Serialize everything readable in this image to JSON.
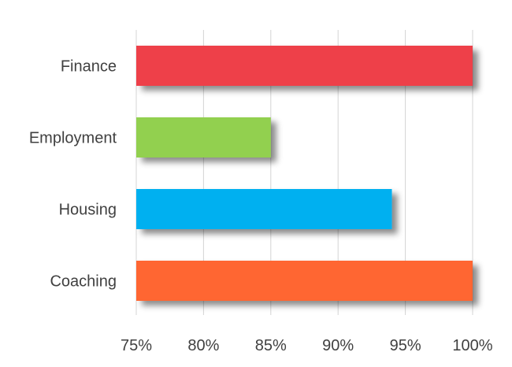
{
  "chart_data": {
    "type": "bar",
    "orientation": "horizontal",
    "categories": [
      "Finance",
      "Employment",
      "Housing",
      "Coaching"
    ],
    "values": [
      100,
      85,
      94,
      100
    ],
    "colors": [
      "#ee4149",
      "#92d050",
      "#00b0f0",
      "#ff6633"
    ],
    "xlim": [
      75,
      100
    ],
    "x_ticks": [
      "75%",
      "80%",
      "85%",
      "90%",
      "95%",
      "100%"
    ],
    "x_tick_values": [
      75,
      80,
      85,
      90,
      95,
      100
    ],
    "grid": "vertical",
    "legend": "none"
  }
}
